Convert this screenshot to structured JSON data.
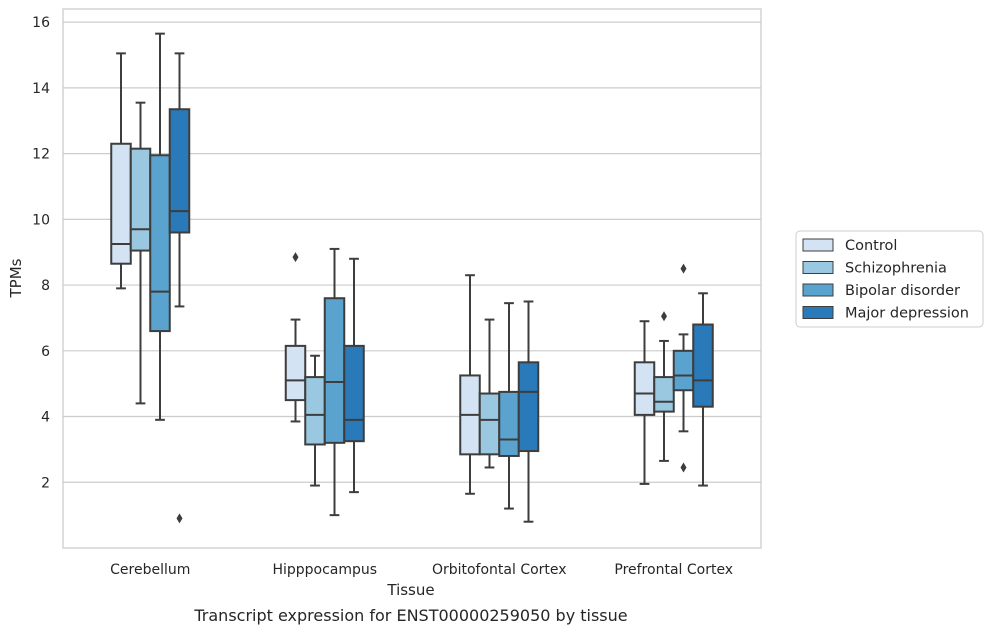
{
  "chart_data": {
    "type": "box",
    "title": "Transcript expression for ENST00000259050 by tissue",
    "xlabel": "Tissue",
    "ylabel": "TPMs",
    "ylim": [
      0,
      16.4
    ],
    "yticks": [
      2,
      4,
      6,
      8,
      10,
      12,
      14,
      16
    ],
    "grid": true,
    "legend_position": "right",
    "categories": [
      "Cerebellum",
      "Hipppocampus",
      "Orbitofontal Cortex",
      "Prefrontal Cortex"
    ],
    "series": [
      {
        "name": "Control",
        "color": "#d3e3f3",
        "boxes": [
          {
            "whislo": 7.9,
            "q1": 8.65,
            "med": 9.25,
            "q3": 12.3,
            "whishi": 15.05,
            "fliers": []
          },
          {
            "whislo": 3.85,
            "q1": 4.5,
            "med": 5.1,
            "q3": 6.15,
            "whishi": 6.95,
            "fliers": [
              8.85
            ]
          },
          {
            "whislo": 1.65,
            "q1": 2.85,
            "med": 4.05,
            "q3": 5.25,
            "whishi": 8.3,
            "fliers": []
          },
          {
            "whislo": 1.95,
            "q1": 4.05,
            "med": 4.7,
            "q3": 5.65,
            "whishi": 6.9,
            "fliers": []
          }
        ]
      },
      {
        "name": "Schizophrenia",
        "color": "#9ac8e0",
        "boxes": [
          {
            "whislo": 4.4,
            "q1": 9.05,
            "med": 9.7,
            "q3": 12.15,
            "whishi": 13.55,
            "fliers": []
          },
          {
            "whislo": 1.9,
            "q1": 3.15,
            "med": 4.05,
            "q3": 5.2,
            "whishi": 5.85,
            "fliers": []
          },
          {
            "whislo": 2.45,
            "q1": 2.85,
            "med": 3.9,
            "q3": 4.7,
            "whishi": 6.95,
            "fliers": []
          },
          {
            "whislo": 2.65,
            "q1": 4.15,
            "med": 4.45,
            "q3": 5.2,
            "whishi": 6.3,
            "fliers": [
              7.05
            ]
          }
        ]
      },
      {
        "name": "Bipolar disorder",
        "color": "#5ba3cf",
        "boxes": [
          {
            "whislo": 3.9,
            "q1": 6.6,
            "med": 7.8,
            "q3": 11.95,
            "whishi": 15.65,
            "fliers": []
          },
          {
            "whislo": 1.0,
            "q1": 3.2,
            "med": 5.05,
            "q3": 7.6,
            "whishi": 9.1,
            "fliers": []
          },
          {
            "whislo": 1.2,
            "q1": 2.8,
            "med": 3.3,
            "q3": 4.75,
            "whishi": 7.45,
            "fliers": []
          },
          {
            "whislo": 3.55,
            "q1": 4.8,
            "med": 5.25,
            "q3": 6.0,
            "whishi": 6.5,
            "fliers": [
              2.45,
              8.5
            ]
          }
        ]
      },
      {
        "name": "Major depression",
        "color": "#2a7ab9",
        "boxes": [
          {
            "whislo": 7.35,
            "q1": 9.6,
            "med": 10.25,
            "q3": 13.35,
            "whishi": 15.05,
            "fliers": [
              0.9
            ]
          },
          {
            "whislo": 1.7,
            "q1": 3.25,
            "med": 3.9,
            "q3": 6.15,
            "whishi": 8.8,
            "fliers": []
          },
          {
            "whislo": 0.8,
            "q1": 2.95,
            "med": 4.75,
            "q3": 5.65,
            "whishi": 7.5,
            "fliers": []
          },
          {
            "whislo": 1.9,
            "q1": 4.3,
            "med": 5.1,
            "q3": 6.8,
            "whishi": 7.75,
            "fliers": []
          }
        ]
      }
    ]
  }
}
